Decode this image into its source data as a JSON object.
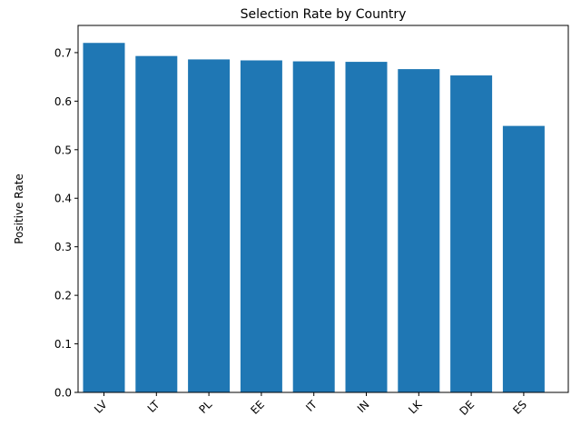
{
  "chart_data": {
    "type": "bar",
    "title": "Selection Rate by Country",
    "xlabel": "",
    "ylabel": "Positive Rate",
    "categories": [
      "LV",
      "LT",
      "PL",
      "EE",
      "IT",
      "IN",
      "LK",
      "DE",
      "ES"
    ],
    "values": [
      0.72,
      0.693,
      0.686,
      0.684,
      0.682,
      0.681,
      0.666,
      0.653,
      0.549
    ],
    "ylim": [
      0,
      0.756
    ],
    "yticks": [
      0.0,
      0.1,
      0.2,
      0.3,
      0.4,
      0.5,
      0.6,
      0.7
    ],
    "ytick_labels": [
      "0.0",
      "0.1",
      "0.2",
      "0.3",
      "0.4",
      "0.5",
      "0.6",
      "0.7"
    ],
    "bar_color": "#1f77b4",
    "grid": false,
    "legend": "none"
  }
}
